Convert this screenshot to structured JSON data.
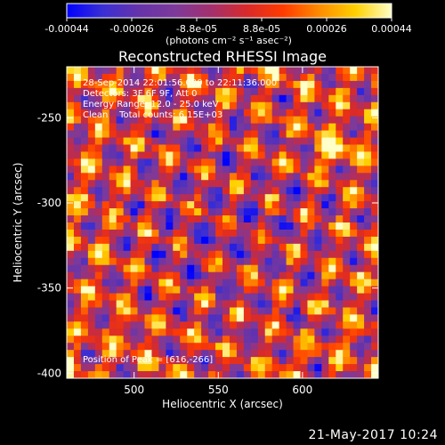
{
  "chart_data": {
    "type": "heatmap",
    "title": "Reconstructed RHESSI Image",
    "xlabel": "Heliocentric X (arcsec)",
    "ylabel": "Heliocentric Y (arcsec)",
    "xlim": [
      460,
      645
    ],
    "ylim": [
      -403,
      -220
    ],
    "x_ticks": [
      500,
      550,
      600
    ],
    "y_ticks": [
      -250,
      -300,
      -350,
      -400
    ],
    "colorbar": {
      "min": -0.00044,
      "max": 0.00044,
      "tick_labels": [
        "-0.00044",
        "-0.00026",
        "-8.8e-05",
        "8.8e-05",
        "0.00026",
        "0.00044"
      ],
      "unit_label": "(photons cm⁻² s⁻¹ asec⁻²)",
      "colormap": [
        "#0000ff",
        "#3a2fd4",
        "#6633aa",
        "#7d3a9a",
        "#a3306e",
        "#d82a2a",
        "#ff3b00",
        "#ff8c00",
        "#ffd000",
        "#ffffc8"
      ]
    },
    "annotations": [
      "28-Sep-2014 22:01:56.000 to 22:11:36.000",
      "Detectors: 3F 6F 9F, Att 0",
      "Energy Range: 12.0 - 25.0 keV",
      "Clean    Total counts: 6.15E+03"
    ],
    "peak_label": "Position of Peak = [616,-266]",
    "peak_position": [
      616,
      -266
    ],
    "grid": false
  },
  "footer": {
    "date": "21-May-2017 10:24"
  }
}
